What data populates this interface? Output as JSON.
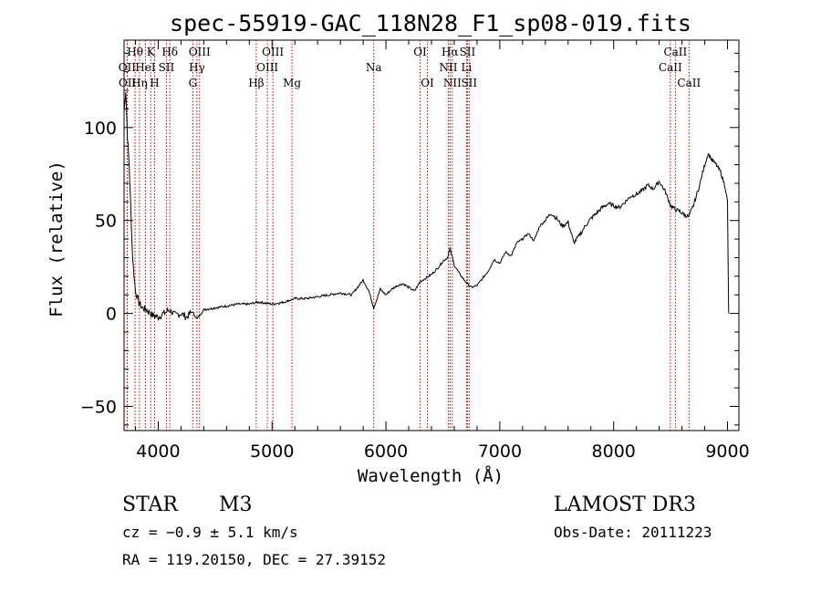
{
  "chart_data": {
    "type": "line",
    "title": "spec-55919-GAC_118N28_F1_sp08-019.fits",
    "xlabel": "Wavelength (Å)",
    "ylabel": "Flux (relative)",
    "xlim": [
      3700,
      9100
    ],
    "ylim": [
      -63,
      147
    ],
    "xticks": [
      4000,
      5000,
      6000,
      7000,
      8000,
      9000
    ],
    "yticks": [
      -50,
      0,
      50,
      100
    ],
    "grid": false,
    "series": [
      {
        "name": "spectrum",
        "x": [
          3700,
          3715,
          3730,
          3745,
          3760,
          3775,
          3800,
          3830,
          3860,
          3900,
          3950,
          4000,
          4050,
          4100,
          4150,
          4200,
          4250,
          4300,
          4340,
          4400,
          4500,
          4600,
          4700,
          4800,
          4861,
          4900,
          5000,
          5100,
          5200,
          5300,
          5400,
          5500,
          5600,
          5700,
          5800,
          5850,
          5893,
          5950,
          6000,
          6050,
          6100,
          6150,
          6200,
          6250,
          6300,
          6350,
          6400,
          6450,
          6500,
          6540,
          6563,
          6600,
          6650,
          6700,
          6750,
          6800,
          6850,
          6900,
          6950,
          7000,
          7050,
          7100,
          7150,
          7200,
          7250,
          7300,
          7350,
          7400,
          7450,
          7500,
          7550,
          7600,
          7650,
          7700,
          7750,
          7800,
          7850,
          7900,
          7950,
          8000,
          8050,
          8100,
          8150,
          8200,
          8250,
          8300,
          8350,
          8400,
          8450,
          8500,
          8540,
          8580,
          8620,
          8660,
          8700,
          8750,
          8800,
          8830,
          8860,
          8900,
          8940,
          8980,
          9000,
          9010
        ],
        "values": [
          108,
          120,
          95,
          80,
          55,
          30,
          12,
          6,
          3,
          2,
          -1,
          -2,
          0,
          2,
          -1,
          0,
          -2,
          1,
          -3,
          2,
          3,
          4,
          5,
          5,
          6,
          6,
          5,
          6,
          8,
          8,
          9,
          10,
          11,
          10,
          18,
          12,
          3,
          13,
          10,
          13,
          15,
          16,
          14,
          12,
          17,
          19,
          21,
          24,
          28,
          30,
          35,
          26,
          21,
          17,
          14,
          15,
          19,
          23,
          29,
          27,
          33,
          31,
          38,
          40,
          43,
          39,
          47,
          50,
          54,
          51,
          47,
          49,
          38,
          42,
          47,
          51,
          54,
          57,
          59,
          58,
          57,
          60,
          63,
          64,
          66,
          69,
          67,
          71,
          66,
          58,
          56,
          55,
          53,
          52,
          58,
          68,
          80,
          86,
          83,
          80,
          76,
          68,
          60,
          0
        ]
      }
    ],
    "lines": [
      {
        "name": "H8",
        "label": "Hθ",
        "wave": 3797,
        "row": 0
      },
      {
        "name": "OII",
        "label": "OII",
        "wave": 3727,
        "row": 1
      },
      {
        "name": "OII-b",
        "label": "OII",
        "wave": 3729,
        "row": 2
      },
      {
        "name": "HeI",
        "label": "HeI",
        "wave": 3888,
        "row": 1
      },
      {
        "name": "Heta",
        "label": "Hη",
        "wave": 3835,
        "row": 2
      },
      {
        "name": "K",
        "label": "K",
        "wave": 3934,
        "row": 0
      },
      {
        "name": "H",
        "label": "H",
        "wave": 3968,
        "row": 2
      },
      {
        "name": "SII-blue",
        "label": "SII",
        "wave": 4072,
        "row": 1
      },
      {
        "name": "Hdelta",
        "label": "Hδ",
        "wave": 4102,
        "row": 0
      },
      {
        "name": "OIII-4363",
        "label": "OIII",
        "wave": 4363,
        "row": 0
      },
      {
        "name": "Hgamma",
        "label": "Hγ",
        "wave": 4340,
        "row": 1
      },
      {
        "name": "G",
        "label": "G",
        "wave": 4304,
        "row": 2
      },
      {
        "name": "Hbeta",
        "label": "Hβ",
        "wave": 4861,
        "row": 2
      },
      {
        "name": "OIII-5007",
        "label": "OIII",
        "wave": 5007,
        "row": 0
      },
      {
        "name": "OIII-4959",
        "label": "OIII",
        "wave": 4959,
        "row": 1
      },
      {
        "name": "Mg",
        "label": "Mg",
        "wave": 5175,
        "row": 2
      },
      {
        "name": "Na",
        "label": "Na",
        "wave": 5893,
        "row": 1
      },
      {
        "name": "OI-6300",
        "label": "OI",
        "wave": 6300,
        "row": 0
      },
      {
        "name": "OI-6364",
        "label": "OI",
        "wave": 6364,
        "row": 2
      },
      {
        "name": "Halpha",
        "label": "Hα",
        "wave": 6563,
        "row": 0
      },
      {
        "name": "NII-6548",
        "label": "NII",
        "wave": 6548,
        "row": 1
      },
      {
        "name": "NII-6583",
        "label": "NII",
        "wave": 6583,
        "row": 2
      },
      {
        "name": "SII-6716",
        "label": "SII",
        "wave": 6716,
        "row": 0
      },
      {
        "name": "Li",
        "label": "Li",
        "wave": 6708,
        "row": 1
      },
      {
        "name": "SII-6731",
        "label": "SII",
        "wave": 6731,
        "row": 2
      },
      {
        "name": "CaII-8542",
        "label": "CaII",
        "wave": 8542,
        "row": 0
      },
      {
        "name": "CaII-8498",
        "label": "CaII",
        "wave": 8498,
        "row": 1
      },
      {
        "name": "CaII-8662",
        "label": "CaII",
        "wave": 8662,
        "row": 2
      }
    ]
  },
  "info": {
    "class": "STAR",
    "subclass": "M3",
    "survey": "LAMOST DR3",
    "cz": "cz = −0.9 ± 5.1 km/s",
    "obs_date": "Obs-Date: 20111223",
    "coords": "RA = 119.20150, DEC =  27.39152"
  }
}
